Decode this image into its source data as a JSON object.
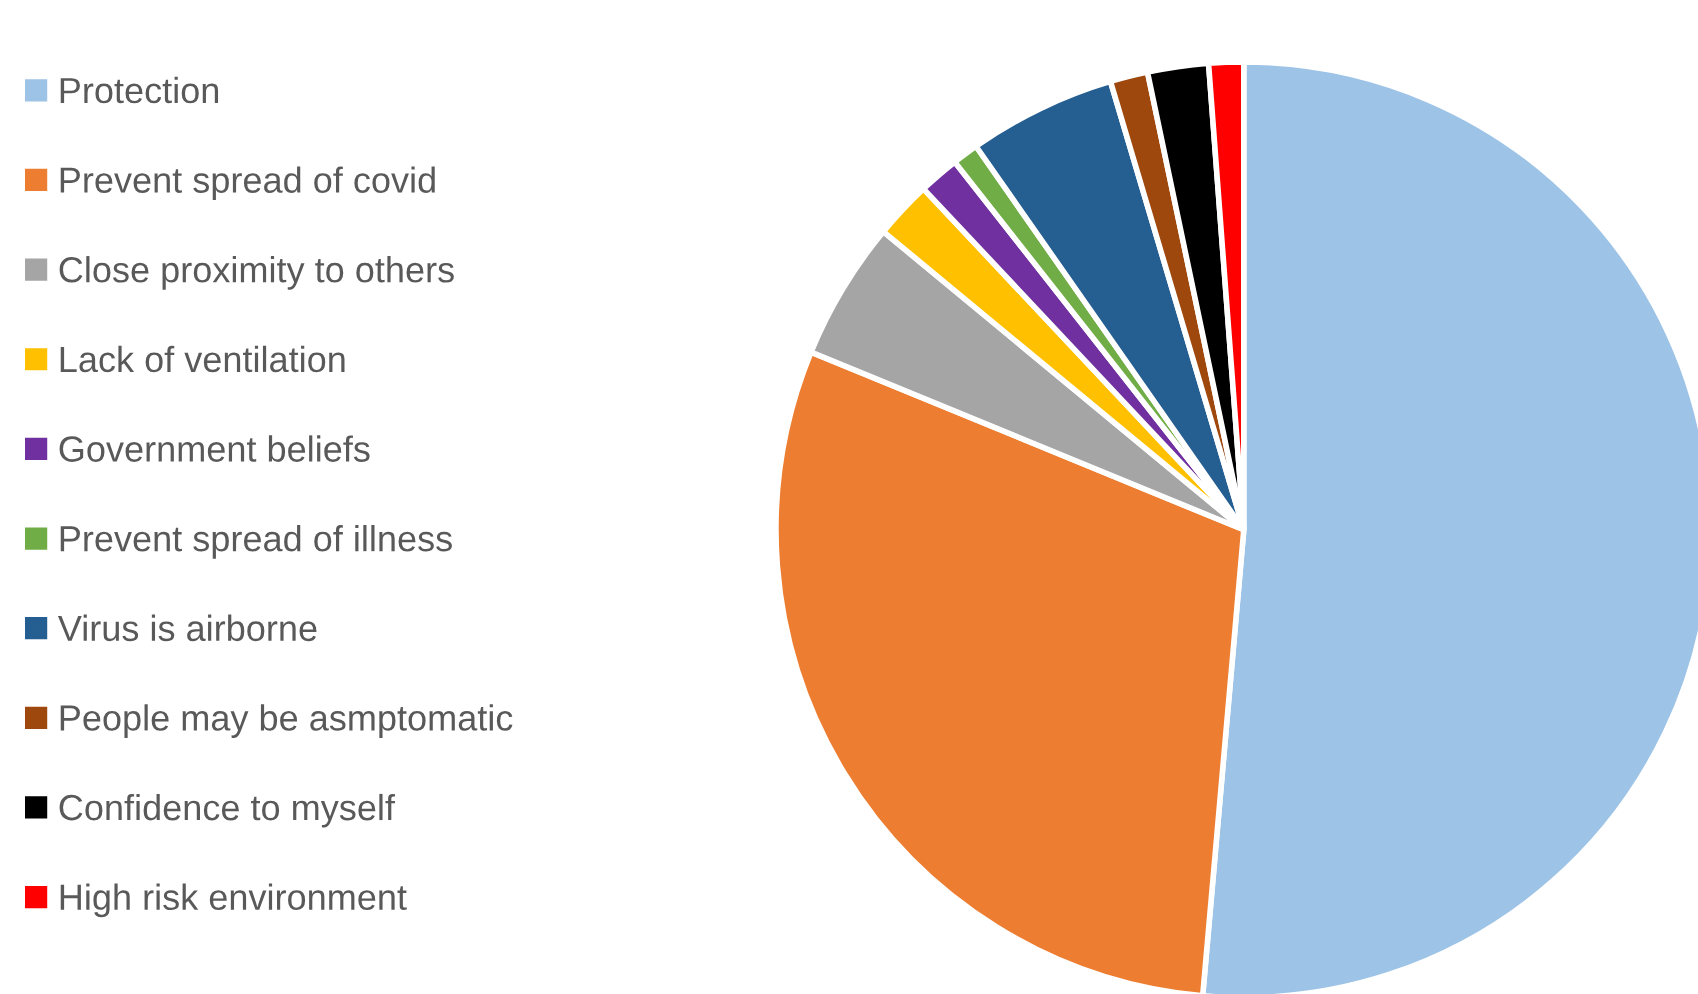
{
  "chart_data": {
    "type": "pie",
    "categories": [
      "Protection",
      "Prevent spread of covid",
      "Close proximity to others",
      "Lack of ventilation",
      "Government beliefs",
      "Prevent spread of illness",
      "Virus is airborne",
      "People may be asmptomatic",
      "Confidence to myself",
      "High risk environment"
    ],
    "values": [
      51.4,
      29.8,
      4.8,
      2.0,
      1.4,
      0.9,
      5.1,
      1.3,
      2.1,
      1.2
    ],
    "colors": [
      "#9dc3e6",
      "#ed7d31",
      "#a5a5a5",
      "#ffc000",
      "#7030a0",
      "#70ad47",
      "#255e91",
      "#9e480e",
      "#000000",
      "#ff0000"
    ],
    "legend": "left"
  }
}
